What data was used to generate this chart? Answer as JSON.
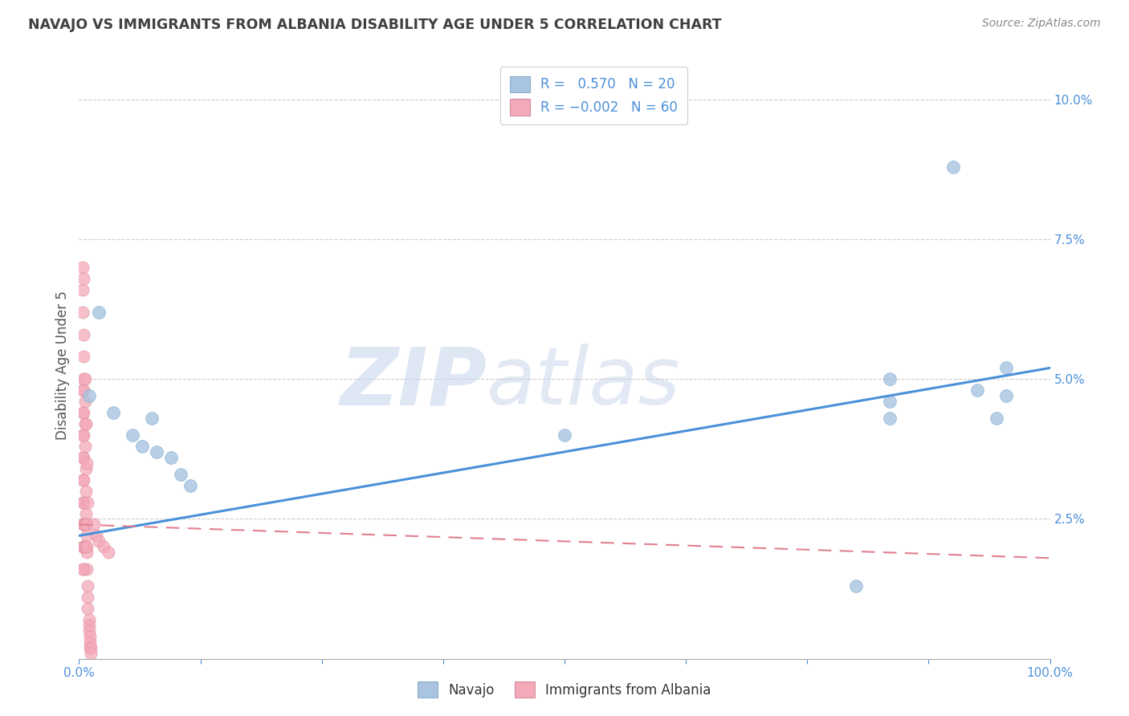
{
  "title": "NAVAJO VS IMMIGRANTS FROM ALBANIA DISABILITY AGE UNDER 5 CORRELATION CHART",
  "source": "Source: ZipAtlas.com",
  "ylabel": "Disability Age Under 5",
  "xlim": [
    0,
    1.0
  ],
  "ylim": [
    0,
    0.105
  ],
  "navajo_color": "#a8c4e0",
  "albania_color": "#f4a8b8",
  "navajo_line_color": "#4a90d9",
  "albania_line_color": "#e08090",
  "background_color": "#ffffff",
  "grid_color": "#cccccc",
  "title_color": "#404040",
  "axis_color": "#4a90d9",
  "navajo_line_x": [
    0.0,
    1.0
  ],
  "navajo_line_y": [
    0.022,
    0.052
  ],
  "albania_line_x": [
    0.0,
    1.0
  ],
  "albania_line_y": [
    0.024,
    0.018
  ],
  "navajo_points": [
    [
      0.01,
      0.047
    ],
    [
      0.02,
      0.062
    ],
    [
      0.035,
      0.044
    ],
    [
      0.055,
      0.04
    ],
    [
      0.065,
      0.038
    ],
    [
      0.075,
      0.043
    ],
    [
      0.095,
      0.036
    ],
    [
      0.115,
      0.031
    ],
    [
      0.5,
      0.04
    ],
    [
      0.8,
      0.013
    ],
    [
      0.835,
      0.05
    ],
    [
      0.9,
      0.088
    ],
    [
      0.925,
      0.048
    ],
    [
      0.945,
      0.043
    ],
    [
      0.955,
      0.052
    ],
    [
      0.955,
      0.047
    ],
    [
      0.835,
      0.046
    ],
    [
      0.835,
      0.043
    ],
    [
      0.105,
      0.033
    ],
    [
      0.08,
      0.037
    ]
  ],
  "albania_points": [
    [
      0.004,
      0.066
    ],
    [
      0.004,
      0.062
    ],
    [
      0.005,
      0.058
    ],
    [
      0.005,
      0.054
    ],
    [
      0.005,
      0.05
    ],
    [
      0.006,
      0.046
    ],
    [
      0.006,
      0.042
    ],
    [
      0.006,
      0.038
    ],
    [
      0.007,
      0.034
    ],
    [
      0.007,
      0.03
    ],
    [
      0.007,
      0.026
    ],
    [
      0.008,
      0.022
    ],
    [
      0.008,
      0.019
    ],
    [
      0.008,
      0.016
    ],
    [
      0.009,
      0.013
    ],
    [
      0.009,
      0.011
    ],
    [
      0.009,
      0.009
    ],
    [
      0.01,
      0.007
    ],
    [
      0.01,
      0.006
    ],
    [
      0.01,
      0.005
    ],
    [
      0.011,
      0.004
    ],
    [
      0.011,
      0.003
    ],
    [
      0.011,
      0.002
    ],
    [
      0.012,
      0.002
    ],
    [
      0.012,
      0.001
    ],
    [
      0.004,
      0.024
    ],
    [
      0.005,
      0.024
    ],
    [
      0.006,
      0.024
    ],
    [
      0.007,
      0.024
    ],
    [
      0.008,
      0.024
    ],
    [
      0.004,
      0.02
    ],
    [
      0.005,
      0.02
    ],
    [
      0.006,
      0.02
    ],
    [
      0.007,
      0.02
    ],
    [
      0.008,
      0.02
    ],
    [
      0.004,
      0.016
    ],
    [
      0.005,
      0.016
    ],
    [
      0.004,
      0.028
    ],
    [
      0.005,
      0.028
    ],
    [
      0.004,
      0.032
    ],
    [
      0.005,
      0.032
    ],
    [
      0.004,
      0.036
    ],
    [
      0.005,
      0.036
    ],
    [
      0.004,
      0.04
    ],
    [
      0.005,
      0.04
    ],
    [
      0.004,
      0.044
    ],
    [
      0.005,
      0.044
    ],
    [
      0.004,
      0.048
    ],
    [
      0.005,
      0.048
    ],
    [
      0.015,
      0.024
    ],
    [
      0.018,
      0.022
    ],
    [
      0.02,
      0.021
    ],
    [
      0.025,
      0.02
    ],
    [
      0.03,
      0.019
    ],
    [
      0.004,
      0.07
    ],
    [
      0.005,
      0.068
    ],
    [
      0.006,
      0.05
    ],
    [
      0.007,
      0.042
    ],
    [
      0.008,
      0.035
    ],
    [
      0.009,
      0.028
    ]
  ]
}
